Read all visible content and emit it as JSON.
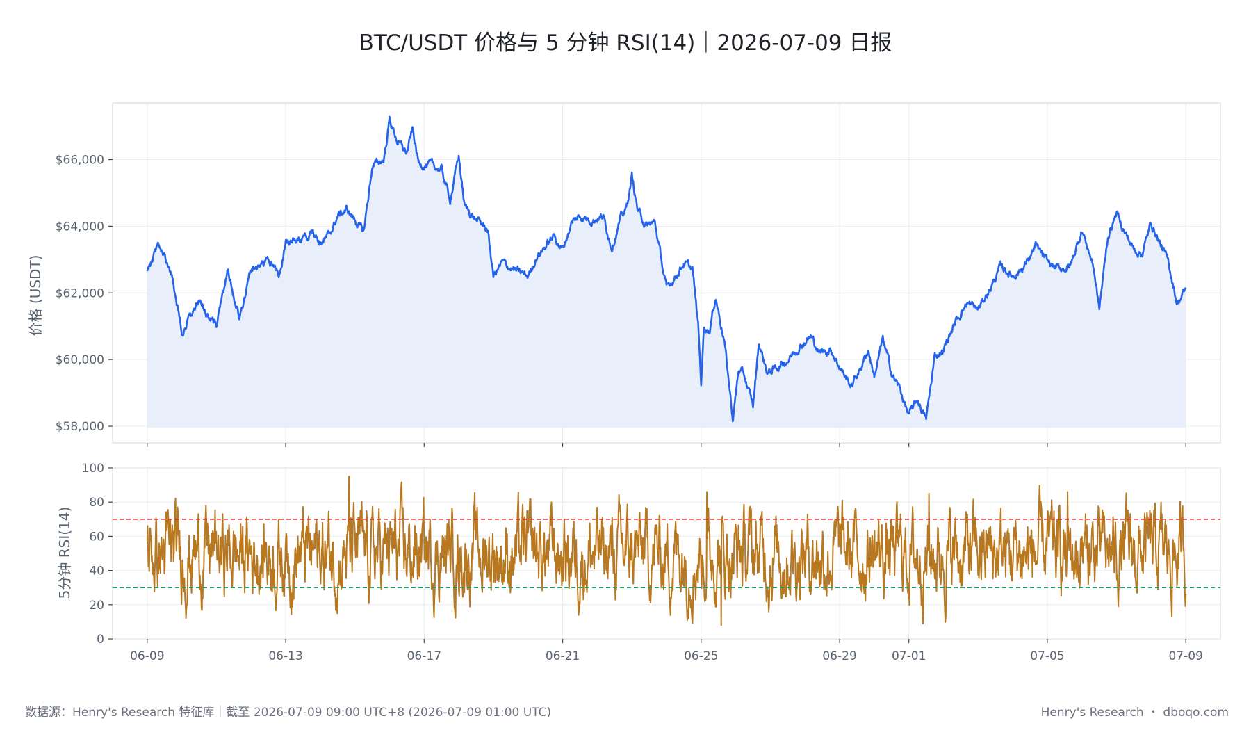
{
  "title": "BTC/USDT 价格与 5 分钟 RSI(14)｜2026-07-09 日报",
  "footer": {
    "source": "数据源：Henry's Research 特征库｜截至 2026-07-09 09:00 UTC+8 (2026-07-09 01:00 UTC)",
    "brand": "Henry's Research ・ dboqo.com"
  },
  "colors": {
    "price_line": "#2563eb",
    "price_fill": "#e8effb",
    "rsi_line": "#b8781f",
    "overbought": "#d62728",
    "oversold": "#16a06a",
    "grid": "#e9ebef",
    "frame": "#dfe3e8"
  },
  "chart_data": [
    {
      "type": "area",
      "panel": "price",
      "ylabel": "价格 (USDT)",
      "ylim": [
        57500,
        67700
      ],
      "yticks": [
        58000,
        60000,
        62000,
        64000,
        66000
      ],
      "ytick_labels": [
        "$58,000",
        "$60,000",
        "$62,000",
        "$64,000",
        "$66,000"
      ],
      "xlim": [
        "2026-06-08",
        "2026-07-10"
      ],
      "grid": true,
      "series": [
        {
          "points": [
            [
              "2026-06-09",
              62650
            ],
            [
              "2026-06-09 08:00",
              63450
            ],
            [
              "2026-06-09 16:00",
              62700
            ],
            [
              "2026-06-10 00:00",
              60900
            ],
            [
              "2026-06-10 12:00",
              61700
            ],
            [
              "2026-06-11 00:00",
              61000
            ],
            [
              "2026-06-11 08:00",
              62600
            ],
            [
              "2026-06-11 16:00",
              61200
            ],
            [
              "2026-06-12 00:00",
              62700
            ],
            [
              "2026-06-12 12:00",
              63000
            ],
            [
              "2026-06-12 20:00",
              62500
            ],
            [
              "2026-06-13 00:00",
              63600
            ],
            [
              "2026-06-13 12:00",
              63500
            ],
            [
              "2026-06-13 18:00",
              64000
            ],
            [
              "2026-06-14 00:00",
              63500
            ],
            [
              "2026-06-14 06:00",
              63700
            ],
            [
              "2026-06-14 12:00",
              64300
            ],
            [
              "2026-06-14 18:00",
              64500
            ],
            [
              "2026-06-15 00:00",
              64200
            ],
            [
              "2026-06-15 06:00",
              63800
            ],
            [
              "2026-06-15 12:00",
              65800
            ],
            [
              "2026-06-15 20:00",
              66000
            ],
            [
              "2026-06-16 00:00",
              67200
            ],
            [
              "2026-06-16 06:00",
              66500
            ],
            [
              "2026-06-16 12:00",
              66200
            ],
            [
              "2026-06-16 16:00",
              66900
            ],
            [
              "2026-06-16 20:00",
              65900
            ],
            [
              "2026-06-17 06:00",
              65800
            ],
            [
              "2026-06-17 12:00",
              65700
            ],
            [
              "2026-06-17 18:00",
              64800
            ],
            [
              "2026-06-18 00:00",
              66100
            ],
            [
              "2026-06-18 04:00",
              64600
            ],
            [
              "2026-06-18 12:00",
              64200
            ],
            [
              "2026-06-18 20:00",
              63900
            ],
            [
              "2026-06-19 00:00",
              62500
            ],
            [
              "2026-06-19 06:00",
              62900
            ],
            [
              "2026-06-19 18:00",
              62600
            ],
            [
              "2026-06-20 00:00",
              62500
            ],
            [
              "2026-06-20 06:00",
              63100
            ],
            [
              "2026-06-20 12:00",
              63400
            ],
            [
              "2026-06-20 18:00",
              63700
            ],
            [
              "2026-06-21 00:00",
              63300
            ],
            [
              "2026-06-21 06:00",
              64100
            ],
            [
              "2026-06-21 12:00",
              64300
            ],
            [
              "2026-06-21 20:00",
              64200
            ],
            [
              "2026-06-22 04:00",
              64300
            ],
            [
              "2026-06-22 10:00",
              63400
            ],
            [
              "2026-06-22 16:00",
              64200
            ],
            [
              "2026-06-22 20:00",
              64500
            ],
            [
              "2026-06-23 00:00",
              65500
            ],
            [
              "2026-06-23 04:00",
              64500
            ],
            [
              "2026-06-23 10:00",
              64000
            ],
            [
              "2026-06-23 16:00",
              64100
            ],
            [
              "2026-06-24 00:00",
              62100
            ],
            [
              "2026-06-24 06:00",
              62500
            ],
            [
              "2026-06-24 12:00",
              62900
            ],
            [
              "2026-06-24 18:00",
              62700
            ],
            [
              "2026-06-24 22:00",
              61000
            ],
            [
              "2026-06-25 00:00",
              59300
            ],
            [
              "2026-06-25 02:00",
              61000
            ],
            [
              "2026-06-25 06:00",
              60900
            ],
            [
              "2026-06-25 10:00",
              61900
            ],
            [
              "2026-06-25 16:00",
              60600
            ],
            [
              "2026-06-25 22:00",
              58200
            ],
            [
              "2026-06-26 02:00",
              59700
            ],
            [
              "2026-06-26 06:00",
              59500
            ],
            [
              "2026-06-26 12:00",
              58600
            ],
            [
              "2026-06-26 16:00",
              60500
            ],
            [
              "2026-06-26 22:00",
              59600
            ],
            [
              "2026-06-27 06:00",
              59800
            ],
            [
              "2026-06-27 12:00",
              60000
            ],
            [
              "2026-06-27 20:00",
              60400
            ],
            [
              "2026-06-28 04:00",
              60700
            ],
            [
              "2026-06-28 10:00",
              60200
            ],
            [
              "2026-06-28 18:00",
              60300
            ],
            [
              "2026-06-29 00:00",
              59800
            ],
            [
              "2026-06-29 08:00",
              59200
            ],
            [
              "2026-06-29 14:00",
              59700
            ],
            [
              "2026-06-29 20:00",
              60300
            ],
            [
              "2026-06-30 00:00",
              59500
            ],
            [
              "2026-06-30 06:00",
              60600
            ],
            [
              "2026-06-30 12:00",
              59600
            ],
            [
              "2026-06-30 18:00",
              59100
            ],
            [
              "2026-07-01 00:00",
              58300
            ],
            [
              "2026-07-01 06:00",
              58800
            ],
            [
              "2026-07-01 12:00",
              58200
            ],
            [
              "2026-07-01 18:00",
              60100
            ],
            [
              "2026-07-02 00:00",
              60300
            ],
            [
              "2026-07-02 08:00",
              61100
            ],
            [
              "2026-07-02 16:00",
              61700
            ],
            [
              "2026-07-03 00:00",
              61500
            ],
            [
              "2026-07-03 08:00",
              62100
            ],
            [
              "2026-07-03 16:00",
              62800
            ],
            [
              "2026-07-04 00:00",
              62500
            ],
            [
              "2026-07-04 08:00",
              62800
            ],
            [
              "2026-07-04 16:00",
              63400
            ],
            [
              "2026-07-05 00:00",
              62900
            ],
            [
              "2026-07-05 08:00",
              62700
            ],
            [
              "2026-07-05 16:00",
              62800
            ],
            [
              "2026-07-06 00:00",
              63900
            ],
            [
              "2026-07-06 08:00",
              62800
            ],
            [
              "2026-07-06 12:00",
              61500
            ],
            [
              "2026-07-06 18:00",
              63700
            ],
            [
              "2026-07-07 00:00",
              64400
            ],
            [
              "2026-07-07 06:00",
              63800
            ],
            [
              "2026-07-07 12:00",
              63300
            ],
            [
              "2026-07-07 18:00",
              63200
            ],
            [
              "2026-07-08 00:00",
              64100
            ],
            [
              "2026-07-08 06:00",
              63500
            ],
            [
              "2026-07-08 12:00",
              62900
            ],
            [
              "2026-07-08 18:00",
              61700
            ],
            [
              "2026-07-09 00:00",
              62100
            ]
          ]
        }
      ]
    },
    {
      "type": "line",
      "panel": "rsi",
      "ylabel": "5分钟 RSI(14)",
      "ylim": [
        0,
        100
      ],
      "yticks": [
        0,
        20,
        40,
        60,
        80,
        100
      ],
      "reference_lines": [
        {
          "y": 70,
          "style": "dashed",
          "color": "#d62728"
        },
        {
          "y": 30,
          "style": "dashed",
          "color": "#16a06a"
        }
      ],
      "xticks": [
        "06-09",
        "06-13",
        "06-17",
        "06-21",
        "06-25",
        "06-29",
        "07-01",
        "07-05",
        "07-09"
      ],
      "x_tick_dates": [
        "2026-06-09",
        "2026-06-13",
        "2026-06-17",
        "2026-06-21",
        "2026-06-25",
        "2026-06-29",
        "2026-07-01",
        "2026-07-05",
        "2026-07-09"
      ],
      "grid": true,
      "series": [
        {
          "generator": "noise",
          "mean": 50,
          "range": [
            8,
            95
          ],
          "extremes": [
            [
              "2026-06-14 20:00",
              95
            ],
            [
              "2026-06-25 14:00",
              8
            ],
            [
              "2026-06-25 04:00",
              86
            ],
            [
              "2026-07-05 14:00",
              86
            ],
            [
              "2026-07-01 14:00",
              85
            ]
          ]
        }
      ]
    }
  ]
}
